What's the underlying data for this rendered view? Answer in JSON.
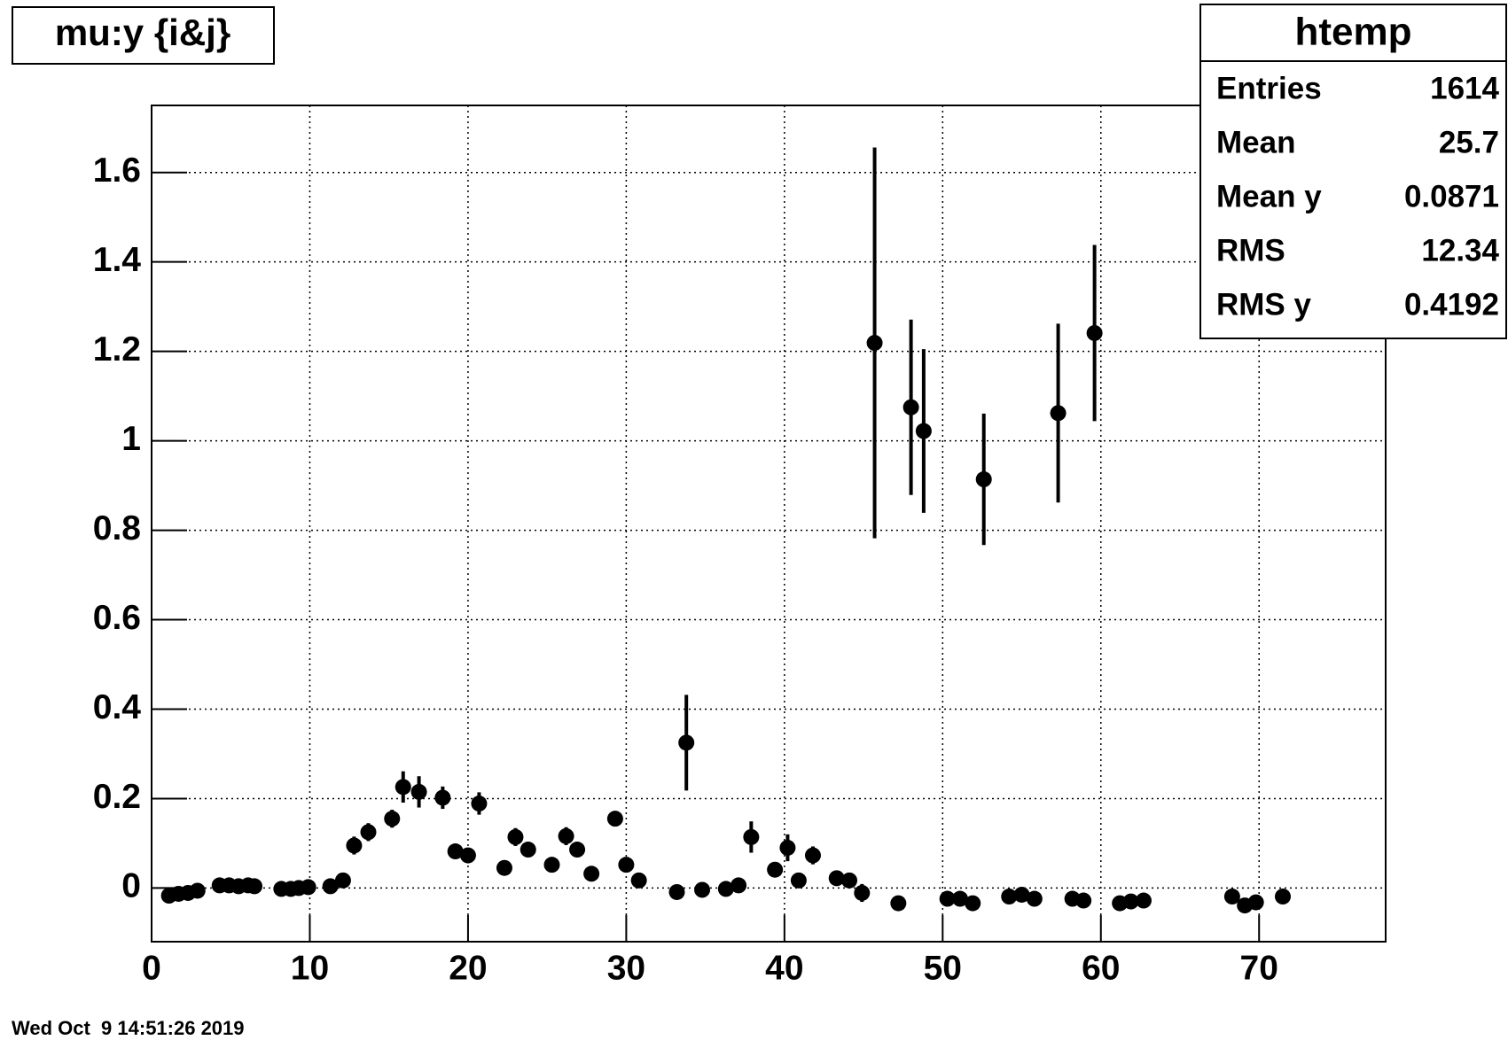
{
  "chart_data": {
    "type": "scatter",
    "title": "mu:y {i&j}",
    "x": [
      1.1,
      1.7,
      2.3,
      2.9,
      4.3,
      4.9,
      5.5,
      6.1,
      6.5,
      8.2,
      8.8,
      9.3,
      9.9,
      11.3,
      12.1,
      12.8,
      13.7,
      15.2,
      15.9,
      16.9,
      18.4,
      19.2,
      20.0,
      20.7,
      22.3,
      23.0,
      23.8,
      25.3,
      26.2,
      26.9,
      27.8,
      29.3,
      30.0,
      30.8,
      33.2,
      33.8,
      34.8,
      36.3,
      37.1,
      37.9,
      39.4,
      40.2,
      40.9,
      41.8,
      43.3,
      44.1,
      44.9,
      45.7,
      47.2,
      48.0,
      48.8,
      50.3,
      51.1,
      51.9,
      52.6,
      54.2,
      55.0,
      55.8,
      57.3,
      58.2,
      58.9,
      59.6,
      61.2,
      61.9,
      62.7,
      68.3,
      69.1,
      69.8,
      71.5
    ],
    "values": [
      -0.017,
      -0.013,
      -0.011,
      -0.006,
      0.006,
      0.006,
      0.004,
      0.006,
      0.004,
      -0.002,
      -0.002,
      0,
      0.002,
      0.004,
      0.017,
      0.095,
      0.125,
      0.155,
      0.226,
      0.215,
      0.202,
      0.082,
      0.073,
      0.189,
      0.045,
      0.114,
      0.086,
      0.052,
      0.116,
      0.086,
      0.032,
      0.155,
      0.052,
      0.017,
      -0.009,
      0.325,
      -0.004,
      -0.002,
      0.006,
      0.114,
      0.041,
      0.09,
      0.017,
      0.073,
      0.022,
      0.017,
      -0.011,
      1.219,
      -0.034,
      1.075,
      1.022,
      -0.024,
      -0.024,
      -0.034,
      0.914,
      -0.019,
      -0.015,
      -0.024,
      1.062,
      -0.024,
      -0.028,
      1.241,
      -0.034,
      -0.03,
      -0.028,
      -0.019,
      -0.039,
      -0.032,
      -0.019
    ],
    "errors": [
      0.008,
      0.008,
      0.008,
      0.008,
      0.008,
      0.008,
      0.008,
      0.008,
      0.008,
      0.008,
      0.008,
      0.008,
      0.008,
      0.008,
      0.01,
      0.02,
      0.02,
      0.02,
      0.035,
      0.035,
      0.025,
      0.01,
      0.01,
      0.025,
      0.01,
      0.02,
      0.01,
      0.01,
      0.02,
      0.01,
      0.01,
      0.012,
      0.01,
      0.01,
      0.008,
      0.107,
      0.008,
      0.008,
      0.008,
      0.035,
      0.01,
      0.03,
      0.01,
      0.02,
      0.01,
      0.01,
      0.02,
      0.437,
      0.008,
      0.196,
      0.183,
      0.008,
      0.008,
      0.008,
      0.147,
      0.008,
      0.008,
      0.008,
      0.2,
      0.008,
      0.008,
      0.197,
      0.008,
      0.008,
      0.008,
      0.008,
      0.008,
      0.008,
      0.008
    ],
    "color": "#000000",
    "xlim": [
      0,
      78
    ],
    "xticks": [
      0,
      10,
      20,
      30,
      40,
      50,
      60,
      70
    ],
    "ylim": [
      -0.12,
      1.75
    ],
    "yticks": [
      0,
      0.2,
      0.4,
      0.6,
      0.8,
      1,
      1.2,
      1.4,
      1.6
    ],
    "grid": true
  },
  "stats": {
    "title": "htemp",
    "rows": [
      [
        "Entries",
        1614
      ],
      [
        "Mean",
        25.7
      ],
      [
        "Mean y",
        0.0871
      ],
      [
        "RMS",
        12.34
      ],
      [
        "RMS y",
        0.4192
      ]
    ]
  },
  "timestamp": "Wed Oct  9 14:51:26 2019"
}
